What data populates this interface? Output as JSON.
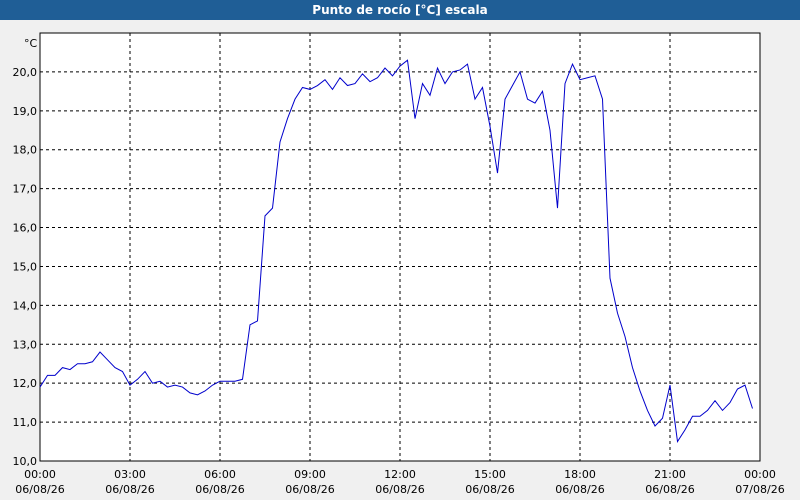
{
  "chart_data": {
    "type": "line",
    "title": "Punto de rocío [°C] escala",
    "y_unit": "°C",
    "x": [
      0,
      0.25,
      0.5,
      0.75,
      1,
      1.25,
      1.5,
      1.75,
      2,
      2.25,
      2.5,
      2.75,
      3,
      3.25,
      3.5,
      3.75,
      4,
      4.25,
      4.5,
      4.75,
      5,
      5.25,
      5.5,
      5.75,
      6,
      6.25,
      6.5,
      6.75,
      7,
      7.25,
      7.5,
      7.75,
      8,
      8.25,
      8.5,
      8.75,
      9,
      9.25,
      9.5,
      9.75,
      10,
      10.25,
      10.5,
      10.75,
      11,
      11.25,
      11.5,
      11.75,
      12,
      12.25,
      12.5,
      12.75,
      13,
      13.25,
      13.5,
      13.75,
      14,
      14.25,
      14.5,
      14.75,
      15,
      15.25,
      15.5,
      15.75,
      16,
      16.25,
      16.5,
      16.75,
      17,
      17.25,
      17.5,
      17.75,
      18,
      18.25,
      18.5,
      18.75,
      19,
      19.25,
      19.5,
      19.75,
      20,
      20.25,
      20.5,
      20.75,
      21,
      21.25,
      21.5,
      21.75,
      22,
      22.25,
      22.5,
      22.75,
      23,
      23.25,
      23.5,
      23.75
    ],
    "series": [
      {
        "color": "#0000cc",
        "values": [
          11.9,
          12.2,
          12.2,
          12.4,
          12.35,
          12.5,
          12.5,
          12.55,
          12.8,
          12.6,
          12.4,
          12.3,
          11.95,
          12.1,
          12.3,
          12.0,
          12.05,
          11.9,
          11.95,
          11.9,
          11.75,
          11.7,
          11.8,
          11.95,
          12.05,
          12.05,
          12.05,
          12.1,
          13.5,
          13.6,
          16.3,
          16.5,
          18.2,
          18.8,
          19.3,
          19.6,
          19.55,
          19.65,
          19.8,
          19.55,
          19.85,
          19.65,
          19.7,
          19.95,
          19.75,
          19.85,
          20.1,
          19.9,
          20.15,
          20.3,
          18.8,
          19.7,
          19.4,
          20.1,
          19.7,
          20.0,
          20.05,
          20.2,
          19.3,
          19.6,
          18.6,
          17.4,
          19.3,
          19.65,
          20.0,
          19.3,
          19.2,
          19.5,
          18.5,
          16.5,
          19.7,
          20.2,
          19.8,
          19.85,
          19.9,
          19.3,
          14.7,
          13.8,
          13.2,
          12.4,
          11.8,
          11.3,
          10.9,
          11.1,
          11.95,
          10.5,
          10.8,
          11.15,
          11.15,
          11.3,
          11.55,
          11.3,
          11.5,
          11.85,
          11.95,
          11.35
        ]
      }
    ],
    "xlim": [
      0,
      24
    ],
    "xticks": [
      {
        "value": 0,
        "label": [
          "00:00",
          "06/08/26"
        ]
      },
      {
        "value": 3,
        "label": [
          "03:00",
          "06/08/26"
        ]
      },
      {
        "value": 6,
        "label": [
          "06:00",
          "06/08/26"
        ]
      },
      {
        "value": 9,
        "label": [
          "09:00",
          "06/08/26"
        ]
      },
      {
        "value": 12,
        "label": [
          "12:00",
          "06/08/26"
        ]
      },
      {
        "value": 15,
        "label": [
          "15:00",
          "06/08/26"
        ]
      },
      {
        "value": 18,
        "label": [
          "18:00",
          "06/08/26"
        ]
      },
      {
        "value": 21,
        "label": [
          "21:00",
          "06/08/26"
        ]
      },
      {
        "value": 24,
        "label": [
          "00:00",
          "07/08/26"
        ]
      }
    ],
    "ylim": [
      10,
      21
    ],
    "yticks": [
      {
        "value": 10,
        "label": "10,0"
      },
      {
        "value": 11,
        "label": "11,0"
      },
      {
        "value": 12,
        "label": "12,0"
      },
      {
        "value": 13,
        "label": "13,0"
      },
      {
        "value": 14,
        "label": "14,0"
      },
      {
        "value": 15,
        "label": "15,0"
      },
      {
        "value": 16,
        "label": "16,0"
      },
      {
        "value": 17,
        "label": "17,0"
      },
      {
        "value": 18,
        "label": "18,0"
      },
      {
        "value": 19,
        "label": "19,0"
      },
      {
        "value": 20,
        "label": "20,0"
      }
    ],
    "grid": true
  }
}
